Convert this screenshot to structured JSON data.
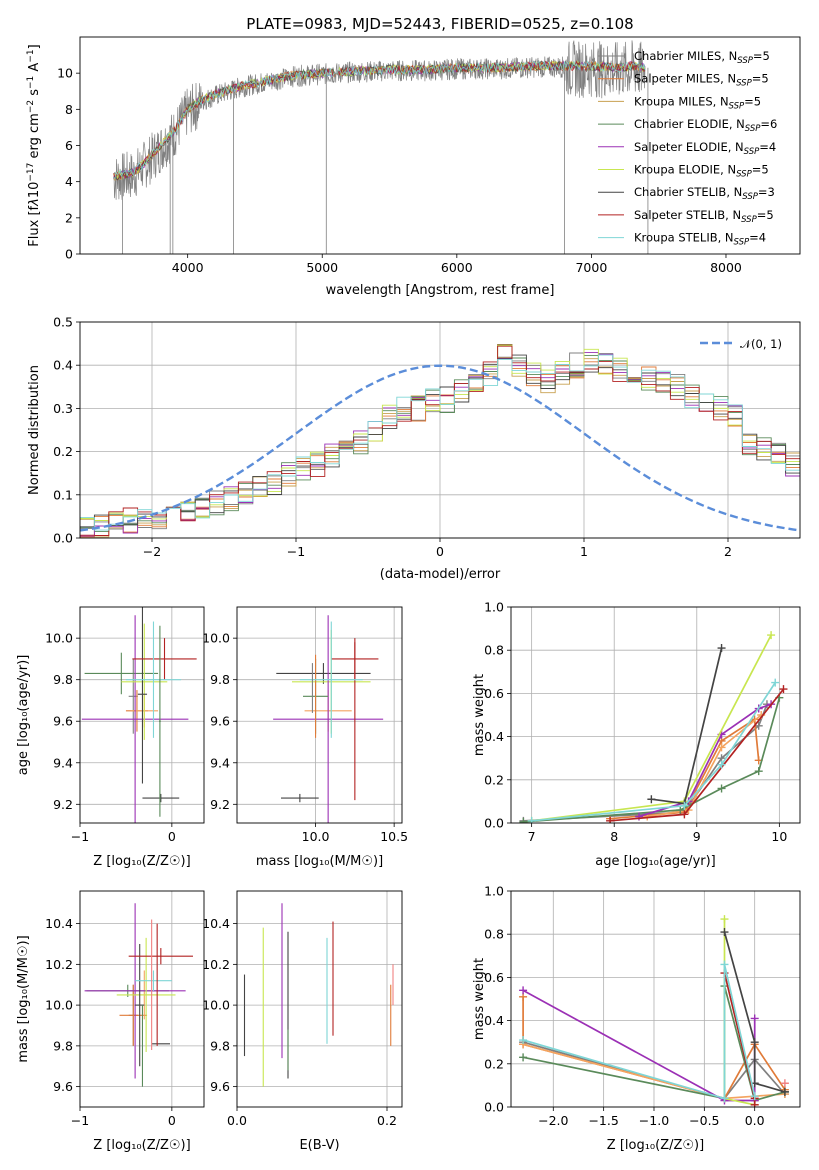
{
  "title": "PLATE=0983, MJD=52443, FIBERID=0525, z=0.108",
  "chart_data": [
    {
      "id": "spectrum",
      "type": "line",
      "xlabel": "wavelength [Angstrom, rest frame]",
      "ylabel": "Flux [f_λ10^-17 erg cm^-2 s^-1 A^-1]",
      "xlim": [
        3200,
        8550
      ],
      "ylim": [
        0,
        12
      ],
      "xticks": [
        "4000",
        "5000",
        "6000",
        "7000",
        "8000"
      ],
      "yticks": [
        "0",
        "2",
        "4",
        "6",
        "8",
        "10"
      ],
      "grid": false,
      "legend_position": "right",
      "data_color": "#808080",
      "continuum": {
        "x": [
          3450,
          3600,
          3700,
          3800,
          3900,
          4000,
          4100,
          4200,
          4400,
          4600,
          4800,
          5000,
          5200,
          5500,
          5800,
          6000,
          6300,
          6600,
          6800,
          7000,
          7200,
          7300,
          7400
        ],
        "y": [
          4.3,
          4.5,
          5.2,
          6.0,
          6.8,
          8.0,
          8.5,
          8.8,
          9.3,
          9.6,
          9.9,
          10.0,
          10.1,
          10.2,
          10.2,
          10.3,
          10.3,
          10.4,
          10.4,
          10.4,
          10.3,
          10.4,
          10.3
        ]
      },
      "dips": [
        {
          "x": 3515,
          "y": 0
        },
        {
          "x": 3870,
          "y": 0
        },
        {
          "x": 3890,
          "y": 0
        },
        {
          "x": 4340,
          "y": 0
        },
        {
          "x": 5030,
          "y": 0
        },
        {
          "x": 6800,
          "y": 0
        },
        {
          "x": 7420,
          "y": 0
        }
      ]
    },
    {
      "id": "residuals",
      "type": "histogram",
      "xlabel": "(data-model)/error",
      "ylabel": "Normed distribution",
      "xlim": [
        -2.5,
        2.5
      ],
      "ylim": [
        0,
        0.5
      ],
      "xticks": [
        "−2",
        "−1",
        "0",
        "1",
        "2"
      ],
      "yticks": [
        "0.0",
        "0.1",
        "0.2",
        "0.3",
        "0.4",
        "0.5"
      ],
      "grid": true,
      "legend": "𝒩(0, 1)",
      "legend_position": "top-right",
      "bin_width": 0.1,
      "bin_start": -2.5,
      "base_density": [
        0.025,
        0.03,
        0.038,
        0.04,
        0.045,
        0.05,
        0.055,
        0.06,
        0.07,
        0.08,
        0.09,
        0.1,
        0.115,
        0.13,
        0.145,
        0.16,
        0.17,
        0.19,
        0.21,
        0.22,
        0.25,
        0.28,
        0.3,
        0.3,
        0.32,
        0.32,
        0.34,
        0.35,
        0.38,
        0.42,
        0.4,
        0.38,
        0.36,
        0.38,
        0.4,
        0.41,
        0.4,
        0.39,
        0.38,
        0.37,
        0.36,
        0.35,
        0.33,
        0.32,
        0.3,
        0.28,
        0.22,
        0.21,
        0.2,
        0.17,
        0.16,
        0.14,
        0.12,
        0.1,
        0.09,
        0.08,
        0.07,
        0.06,
        0.05,
        0.04
      ]
    },
    {
      "id": "age_vs_z",
      "type": "errorbar",
      "xlabel": "Z [log₁₀(Z/Z☉)]",
      "ylabel": "age  [log₁₀(age/yr)]",
      "xlim": [
        -1.0,
        0.35
      ],
      "ylim": [
        9.11,
        10.15
      ],
      "xticks": [
        "−1",
        "0"
      ],
      "xtick_values": [
        -1,
        0
      ],
      "yticks": [
        "9.2",
        "9.4",
        "9.6",
        "9.8",
        "10.0"
      ],
      "ytick_values": [
        9.2,
        9.4,
        9.6,
        9.8,
        10.0
      ],
      "grid": true,
      "points": [
        {
          "x": -0.42,
          "y": 9.72,
          "xerr": 0.05,
          "yerr": 0.18,
          "color": "#808080"
        },
        {
          "x": -0.38,
          "y": 9.65,
          "xerr": 0.12,
          "yerr": 0.1,
          "color": "#e07b39"
        },
        {
          "x": -0.3,
          "y": 9.65,
          "xerr": 0.15,
          "yerr": 0.08,
          "color": "#f4a460"
        },
        {
          "x": -0.55,
          "y": 9.83,
          "xerr": 0.4,
          "yerr": 0.1,
          "color": "#5a8a5a"
        },
        {
          "x": -0.4,
          "y": 9.61,
          "xerr": 0.58,
          "yerr": 0.5,
          "color": "#9b30b5"
        },
        {
          "x": -0.3,
          "y": 9.79,
          "xerr": 0.25,
          "yerr": 0.28,
          "color": "#c8e650"
        },
        {
          "x": -0.32,
          "y": 9.73,
          "xerr": 0.05,
          "yerr": 0.43,
          "color": "#444444"
        },
        {
          "x": -0.08,
          "y": 9.9,
          "xerr": 0.35,
          "yerr": 0.1,
          "color": "#b22222"
        },
        {
          "x": -0.2,
          "y": 9.8,
          "xerr": 0.3,
          "yerr": 0.28,
          "color": "#7fd6d6"
        },
        {
          "x": -0.12,
          "y": 9.23,
          "xerr": 0.2,
          "yerr": 0.02,
          "color": "#444444"
        },
        {
          "x": -0.13,
          "y": 9.6,
          "xerr": 0.01,
          "yerr": 0.46,
          "color": "#5a8a5a"
        }
      ]
    },
    {
      "id": "age_vs_mass",
      "type": "errorbar",
      "xlabel": "mass [log₁₀(M/M☉)]",
      "xlim": [
        9.5,
        10.55
      ],
      "ylim": [
        9.11,
        10.15
      ],
      "xticks": [
        "10.0",
        "10.5"
      ],
      "xtick_values": [
        10.0,
        10.5
      ],
      "yticks": [
        "9.2",
        "9.4",
        "9.6",
        "9.8",
        "10.0"
      ],
      "ytick_values": [
        9.2,
        9.4,
        9.6,
        9.8,
        10.0
      ],
      "grid": true,
      "points": [
        {
          "x": 10.05,
          "y": 9.83,
          "xerr": 0.3,
          "yerr": 0.05,
          "color": "#444444"
        },
        {
          "x": 10.1,
          "y": 9.79,
          "xerr": 0.25,
          "yerr": 0.25,
          "color": "#c8e650"
        },
        {
          "x": 10.08,
          "y": 9.65,
          "xerr": 0.15,
          "yerr": 0.1,
          "color": "#f4a460"
        },
        {
          "x": 10.08,
          "y": 9.61,
          "xerr": 0.35,
          "yerr": 0.5,
          "color": "#9b30b5"
        },
        {
          "x": 10.0,
          "y": 9.72,
          "xerr": 0.08,
          "yerr": 0.18,
          "color": "#5a8a5a"
        },
        {
          "x": 10.0,
          "y": 9.72,
          "xerr": 0.0,
          "yerr": 0.2,
          "color": "#e07b39"
        },
        {
          "x": 10.25,
          "y": 9.9,
          "xerr": 0.15,
          "yerr": 0.1,
          "color": "#b22222"
        },
        {
          "x": 10.25,
          "y": 9.6,
          "xerr": 0.0,
          "yerr": 0.38,
          "color": "#b22222"
        },
        {
          "x": 10.1,
          "y": 9.8,
          "xerr": 0.2,
          "yerr": 0.28,
          "color": "#7fd6d6"
        },
        {
          "x": 9.9,
          "y": 9.23,
          "xerr": 0.12,
          "yerr": 0.02,
          "color": "#444444"
        },
        {
          "x": 9.98,
          "y": 9.76,
          "xerr": 0.0,
          "yerr": 0.12,
          "color": "#808080"
        }
      ]
    },
    {
      "id": "weight_vs_age",
      "type": "line",
      "xlabel": "age  [log₁₀(age/yr)]",
      "ylabel": "mass weight",
      "xlim": [
        6.75,
        10.25
      ],
      "ylim": [
        0,
        1.0
      ],
      "xticks": [
        "7",
        "8",
        "9",
        "10"
      ],
      "xtick_values": [
        7,
        8,
        9,
        10
      ],
      "yticks": [
        "0.0",
        "0.2",
        "0.4",
        "0.6",
        "0.8",
        "1.0"
      ],
      "ytick_values": [
        0,
        0.2,
        0.4,
        0.6,
        0.8,
        1.0
      ],
      "grid": true,
      "series": [
        {
          "color": "#808080",
          "x": [
            6.9,
            8.85,
            9.3,
            9.75,
            9.85
          ],
          "y": [
            0.01,
            0.05,
            0.3,
            0.45,
            0.55
          ]
        },
        {
          "color": "#e07b39",
          "x": [
            7.95,
            8.85,
            9.3,
            9.7,
            9.75
          ],
          "y": [
            0.02,
            0.05,
            0.38,
            0.48,
            0.29
          ]
        },
        {
          "color": "#f4a460",
          "x": [
            8.4,
            8.9,
            9.3,
            9.78
          ],
          "y": [
            0.03,
            0.06,
            0.35,
            0.5
          ]
        },
        {
          "color": "#5a8a5a",
          "x": [
            6.9,
            8.8,
            9.3,
            9.75,
            10.0
          ],
          "y": [
            0.005,
            0.06,
            0.16,
            0.24,
            0.58
          ]
        },
        {
          "color": "#9b30b5",
          "x": [
            8.3,
            8.9,
            9.3,
            9.75,
            9.9
          ],
          "y": [
            0.03,
            0.1,
            0.41,
            0.53,
            0.55
          ]
        },
        {
          "color": "#c8e650",
          "x": [
            7.0,
            8.85,
            9.9
          ],
          "y": [
            0.01,
            0.1,
            0.87
          ]
        },
        {
          "color": "#444444",
          "x": [
            8.45,
            8.85,
            9.3
          ],
          "y": [
            0.11,
            0.09,
            0.81
          ]
        },
        {
          "color": "#b22222",
          "x": [
            7.95,
            8.85,
            10.05
          ],
          "y": [
            0.01,
            0.04,
            0.62
          ]
        },
        {
          "color": "#7fd6d6",
          "x": [
            7.0,
            8.85,
            9.3,
            9.95
          ],
          "y": [
            0.01,
            0.08,
            0.27,
            0.65
          ]
        }
      ]
    },
    {
      "id": "mass_vs_z",
      "type": "errorbar",
      "xlabel": "Z [log₁₀(Z/Z☉)]",
      "ylabel": "mass [log₁₀(M/M☉)]",
      "xlim": [
        -1.0,
        0.35
      ],
      "ylim": [
        9.5,
        10.56
      ],
      "xticks": [
        "−1",
        "0"
      ],
      "xtick_values": [
        -1,
        0
      ],
      "yticks": [
        "9.6",
        "9.8",
        "10.0",
        "10.2",
        "10.4"
      ],
      "ytick_values": [
        9.6,
        9.8,
        10.0,
        10.2,
        10.4
      ],
      "grid": true,
      "points": [
        {
          "x": -0.42,
          "y": 9.95,
          "xerr": 0.05,
          "yerr": 0.15,
          "color": "#808080"
        },
        {
          "x": -0.42,
          "y": 9.95,
          "xerr": 0.15,
          "yerr": 0.15,
          "color": "#e07b39"
        },
        {
          "x": -0.3,
          "y": 10.05,
          "xerr": 0.15,
          "yerr": 0.12,
          "color": "#f4a460"
        },
        {
          "x": -0.48,
          "y": 10.07,
          "xerr": 0.45,
          "yerr": 0.03,
          "color": "#5a8a5a"
        },
        {
          "x": -0.4,
          "y": 10.07,
          "xerr": 0.55,
          "yerr": 0.43,
          "color": "#9b30b5"
        },
        {
          "x": -0.28,
          "y": 10.05,
          "xerr": 0.32,
          "yerr": 0.28,
          "color": "#c8e650"
        },
        {
          "x": -0.35,
          "y": 10.0,
          "xerr": 0.05,
          "yerr": 0.3,
          "color": "#444444"
        },
        {
          "x": -0.12,
          "y": 10.24,
          "xerr": 0.35,
          "yerr": 0.04,
          "color": "#b22222"
        },
        {
          "x": -0.2,
          "y": 10.12,
          "xerr": 0.2,
          "yerr": 0.05,
          "color": "#7fd6d6"
        },
        {
          "x": -0.12,
          "y": 9.81,
          "xerr": 0.1,
          "yerr": 0.0,
          "color": "#444444"
        },
        {
          "x": -0.22,
          "y": 10.1,
          "xerr": 0.0,
          "yerr": 0.32,
          "color": "#f08080"
        },
        {
          "x": -0.16,
          "y": 10.1,
          "xerr": 0.0,
          "yerr": 0.3,
          "color": "#b22222"
        },
        {
          "x": -0.32,
          "y": 9.8,
          "xerr": 0.0,
          "yerr": 0.2,
          "color": "#5a8a5a"
        }
      ]
    },
    {
      "id": "mass_vs_ebv",
      "type": "errorbar",
      "xlabel": "E(B-V)",
      "xlim": [
        0.0,
        0.22
      ],
      "ylim": [
        9.5,
        10.56
      ],
      "xticks": [
        "0.0",
        "0.2"
      ],
      "xtick_values": [
        0.0,
        0.2
      ],
      "yticks": [
        "9.6",
        "9.8",
        "10.0",
        "10.2",
        "10.4"
      ],
      "ytick_values": [
        9.6,
        9.8,
        10.0,
        10.2,
        10.4
      ],
      "grid": true,
      "points": [
        {
          "x": 0.01,
          "y": 9.95,
          "yerr": 0.2,
          "color": "#444444"
        },
        {
          "x": 0.035,
          "y": 9.99,
          "yerr": 0.39,
          "color": "#c8e650"
        },
        {
          "x": 0.06,
          "y": 10.12,
          "yerr": 0.38,
          "color": "#9b30b5"
        },
        {
          "x": 0.068,
          "y": 10.0,
          "yerr": 0.36,
          "color": "#444444"
        },
        {
          "x": 0.068,
          "y": 9.78,
          "yerr": 0.1,
          "color": "#5a8a5a"
        },
        {
          "x": 0.12,
          "y": 10.07,
          "yerr": 0.26,
          "color": "#7fd6d6"
        },
        {
          "x": 0.128,
          "y": 10.13,
          "yerr": 0.28,
          "color": "#b22222"
        },
        {
          "x": 0.205,
          "y": 9.95,
          "yerr": 0.15,
          "color": "#e07b39"
        },
        {
          "x": 0.208,
          "y": 10.1,
          "yerr": 0.1,
          "color": "#f08080"
        }
      ]
    },
    {
      "id": "weight_vs_z",
      "type": "line",
      "xlabel": "Z [log₁₀(Z/Z☉)]",
      "ylabel": "mass weight",
      "xlim": [
        -2.42,
        0.45
      ],
      "ylim": [
        0,
        1.0
      ],
      "xticks": [
        "−2.0",
        "−1.5",
        "−1.0",
        "−0.5",
        "0.0"
      ],
      "xtick_values": [
        -2.0,
        -1.5,
        -1.0,
        -0.5,
        0.0
      ],
      "yticks": [
        "0.0",
        "0.2",
        "0.4",
        "0.6",
        "0.8",
        "1.0"
      ],
      "ytick_values": [
        0,
        0.2,
        0.4,
        0.6,
        0.8,
        1.0
      ],
      "grid": true,
      "series": [
        {
          "color": "#808080",
          "x": [
            -2.3,
            -0.3,
            0.0,
            0.3
          ],
          "y": [
            0.3,
            0.04,
            0.22,
            0.06
          ]
        },
        {
          "color": "#e07b39",
          "x": [
            -2.3,
            -2.3,
            -0.3,
            0.0,
            0.3
          ],
          "y": [
            0.51,
            0.29,
            0.04,
            0.29,
            0.08
          ]
        },
        {
          "color": "#f4a460",
          "x": [
            -2.3,
            -0.3,
            0.0,
            0.3
          ],
          "y": [
            0.29,
            0.04,
            0.05,
            0.06
          ]
        },
        {
          "color": "#5a8a5a",
          "x": [
            -2.3,
            -0.3,
            -0.3,
            0.0,
            0.3
          ],
          "y": [
            0.23,
            0.04,
            0.56,
            0.03,
            0.07
          ]
        },
        {
          "color": "#9b30b5",
          "x": [
            -2.3,
            -0.3,
            0.0,
            0.0
          ],
          "y": [
            0.54,
            0.03,
            0.03,
            0.41
          ]
        },
        {
          "color": "#c8e650",
          "x": [
            -0.3,
            -0.3,
            0.0
          ],
          "y": [
            0.87,
            0.04,
            0.01
          ]
        },
        {
          "color": "#444444",
          "x": [
            -0.3,
            0.0,
            0.0,
            0.3
          ],
          "y": [
            0.81,
            0.3,
            0.11,
            0.07
          ]
        },
        {
          "color": "#b22222",
          "x": [
            -0.3,
            0.0,
            0.0
          ],
          "y": [
            0.62,
            0.04,
            0.01
          ]
        },
        {
          "color": "#7fd6d6",
          "x": [
            -2.3,
            -0.3,
            -0.3,
            0.0
          ],
          "y": [
            0.31,
            0.04,
            0.66,
            0.05
          ]
        },
        {
          "color": "#f08080",
          "x": [
            0.3
          ],
          "y": [
            0.11
          ]
        }
      ]
    }
  ],
  "legend_entries": [
    {
      "label": "Chabrier MILES, N",
      "sub": "SSP",
      "suffix": "=5",
      "color": "#808080"
    },
    {
      "label": "Salpeter MILES, N",
      "sub": "SSP",
      "suffix": "=5",
      "color": "#e07b39"
    },
    {
      "label": "Kroupa MILES, N",
      "sub": "SSP",
      "suffix": "=5",
      "color": "#c8a050"
    },
    {
      "label": "Chabrier ELODIE, N",
      "sub": "SSP",
      "suffix": "=6",
      "color": "#5a8a5a"
    },
    {
      "label": "Salpeter ELODIE, N",
      "sub": "SSP",
      "suffix": "=4",
      "color": "#9b30b5"
    },
    {
      "label": "Kroupa ELODIE, N",
      "sub": "SSP",
      "suffix": "=5",
      "color": "#c8e650"
    },
    {
      "label": "Chabrier STELIB, N",
      "sub": "SSP",
      "suffix": "=3",
      "color": "#444444"
    },
    {
      "label": "Salpeter STELIB, N",
      "sub": "SSP",
      "suffix": "=5",
      "color": "#b22222"
    },
    {
      "label": "Kroupa STELIB, N",
      "sub": "SSP",
      "suffix": "=4",
      "color": "#7fd6d6"
    }
  ],
  "hist_colors": [
    "#808080",
    "#e07b39",
    "#c8a050",
    "#5a8a5a",
    "#9b30b5",
    "#c8e650",
    "#444444",
    "#b22222",
    "#7fd6d6"
  ],
  "normal_curve_color": "#5b8dd9"
}
